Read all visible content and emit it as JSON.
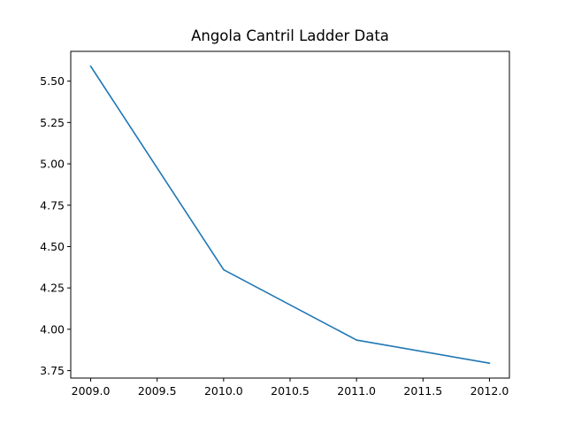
{
  "chart_data": {
    "type": "line",
    "title": "Angola Cantril Ladder Data",
    "xlabel": "",
    "ylabel": "",
    "x": [
      2009,
      2010,
      2011,
      2012
    ],
    "series": [
      {
        "values": [
          5.59,
          4.36,
          3.935,
          3.795
        ],
        "color": "#1f77b4"
      }
    ],
    "xlim": [
      2008.85,
      2012.15
    ],
    "ylim": [
      3.705,
      5.68
    ],
    "xticks": [
      2009.0,
      2009.5,
      2010.0,
      2010.5,
      2011.0,
      2011.5,
      2012.0
    ],
    "xtick_labels": [
      "2009.0",
      "2009.5",
      "2010.0",
      "2010.5",
      "2011.0",
      "2011.5",
      "2012.0"
    ],
    "yticks": [
      3.75,
      4.0,
      4.25,
      4.5,
      4.75,
      5.0,
      5.25,
      5.5
    ],
    "ytick_labels": [
      "3.75",
      "4.00",
      "4.25",
      "4.50",
      "4.75",
      "5.00",
      "5.25",
      "5.50"
    ],
    "grid": false,
    "legend": "none"
  }
}
